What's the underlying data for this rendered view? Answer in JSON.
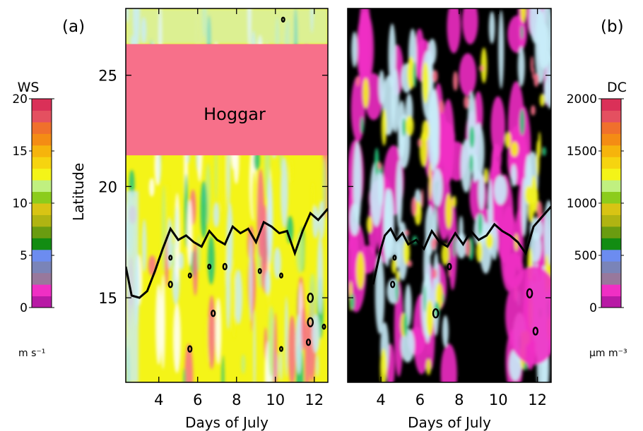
{
  "chart_data": [
    {
      "type": "heatmap",
      "panel_label": "(a)",
      "colorbar_title": "WS",
      "colorbar_unit": "m s⁻¹",
      "colorbar_ticks": [
        0,
        5,
        10,
        15,
        20
      ],
      "colorbar_range": [
        0,
        20
      ],
      "annotation": "Hoggar",
      "xlabel": "Days of July",
      "ylabel": "Latitude",
      "x_ticks": [
        4,
        6,
        8,
        10,
        12
      ],
      "y_ticks": [
        15,
        20,
        25
      ],
      "xlim": [
        2.3,
        12.7
      ],
      "ylim": [
        11.2,
        28.0
      ],
      "masked_region": {
        "lat_range": [
          21.4,
          26.4
        ],
        "color": "#f7708a"
      },
      "contour": {
        "x": [
          2.3,
          2.6,
          3.0,
          3.4,
          3.8,
          4.2,
          4.6,
          5.0,
          5.4,
          5.8,
          6.2,
          6.6,
          7.0,
          7.4,
          7.8,
          8.2,
          8.6,
          9.0,
          9.4,
          9.8,
          10.2,
          10.6,
          11.0,
          11.4,
          11.8,
          12.2,
          12.7
        ],
        "y": [
          16.4,
          15.1,
          15.0,
          15.3,
          16.2,
          17.2,
          18.1,
          17.6,
          17.8,
          17.5,
          17.3,
          18.0,
          17.6,
          17.4,
          18.2,
          17.9,
          18.1,
          17.5,
          18.4,
          18.2,
          17.9,
          18.0,
          17.0,
          18.0,
          18.8,
          18.5,
          19.0
        ]
      }
    },
    {
      "type": "heatmap",
      "panel_label": "(b)",
      "colorbar_title": "DC",
      "colorbar_unit": "μm m⁻³",
      "colorbar_ticks": [
        0,
        500,
        1000,
        1500,
        2000
      ],
      "colorbar_range": [
        0,
        2000
      ],
      "xlabel": "Days of July",
      "x_ticks": [
        4,
        6,
        8,
        10,
        12
      ],
      "xlim": [
        2.3,
        12.7
      ],
      "ylim": [
        11.2,
        28.0
      ],
      "contour": {
        "x": [
          3.6,
          3.8,
          4.0,
          4.2,
          4.5,
          4.8,
          5.1,
          5.4,
          5.8,
          6.2,
          6.6,
          7.0,
          7.4,
          7.8,
          8.2,
          8.6,
          9.0,
          9.4,
          9.8,
          10.2,
          10.6,
          11.0,
          11.4,
          11.8,
          12.2,
          12.7
        ],
        "y": [
          15.6,
          16.4,
          17.2,
          17.8,
          18.1,
          17.6,
          17.9,
          17.4,
          17.6,
          17.2,
          18.0,
          17.5,
          17.3,
          17.9,
          17.4,
          18.0,
          17.6,
          17.8,
          18.3,
          18.0,
          17.8,
          17.5,
          17.0,
          18.2,
          18.6,
          19.1
        ]
      }
    }
  ],
  "colorbar_colors": [
    "#b81aa5",
    "#f02fc4",
    "#98789c",
    "#7a84b8",
    "#6c8cf0",
    "#128c12",
    "#6a9c10",
    "#b0b412",
    "#d8c414",
    "#8ccc1c",
    "#c0f080",
    "#f4f418",
    "#f6d410",
    "#f6b40c",
    "#f48c14",
    "#f0702c",
    "#e45060",
    "#da3058"
  ]
}
